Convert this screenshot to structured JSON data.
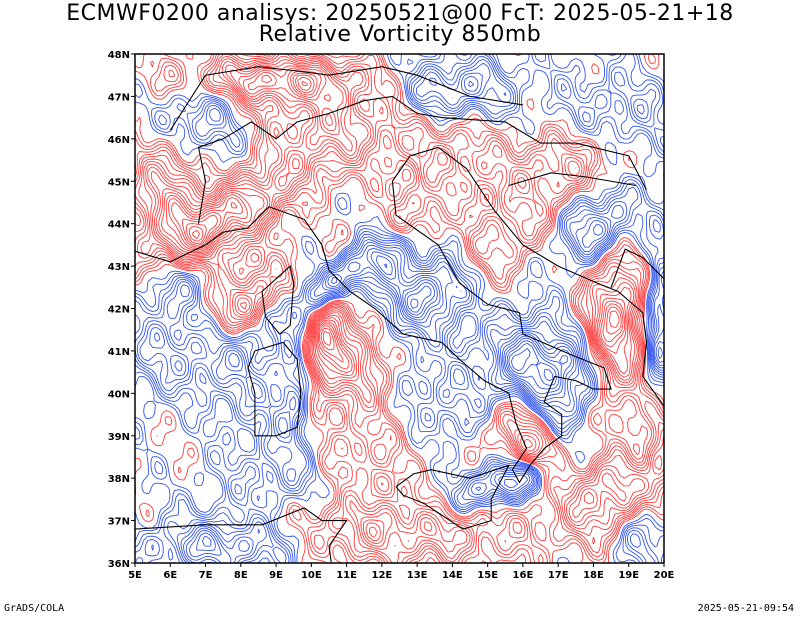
{
  "header": {
    "title_line1": "ECMWF0200 analisys: 20250521@00 FcT: 2025-05-21+18",
    "title_line2": "Relative Vorticity 850mb"
  },
  "map": {
    "lon_labels": [
      "5E",
      "6E",
      "7E",
      "8E",
      "9E",
      "10E",
      "11E",
      "12E",
      "13E",
      "14E",
      "15E",
      "16E",
      "17E",
      "18E",
      "19E",
      "20E"
    ],
    "lat_labels": [
      "36N",
      "37N",
      "38N",
      "39N",
      "40N",
      "41N",
      "42N",
      "43N",
      "44N",
      "45N",
      "46N",
      "47N",
      "48N"
    ],
    "lon_range": [
      5,
      20
    ],
    "lat_range": [
      36,
      48
    ],
    "colors": {
      "positive_contours": "#ff3b3b",
      "negative_contours": "#3355ee",
      "coastline": "#000000",
      "frame": "#000000"
    }
  },
  "footer": {
    "left_credit": "GrADS/COLA",
    "right_timestamp": "2025-05-21-09:54"
  }
}
